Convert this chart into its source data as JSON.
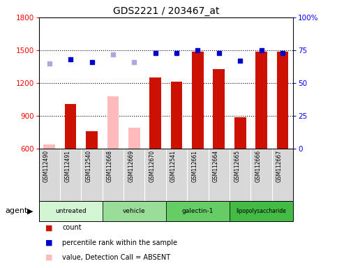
{
  "title": "GDS2221 / 203467_at",
  "samples": [
    "GSM112490",
    "GSM112491",
    "GSM112540",
    "GSM112668",
    "GSM112669",
    "GSM112670",
    "GSM112541",
    "GSM112661",
    "GSM112664",
    "GSM112665",
    "GSM112666",
    "GSM112667"
  ],
  "values": [
    640,
    1010,
    760,
    1080,
    790,
    1250,
    1210,
    1490,
    1330,
    890,
    1490,
    1490
  ],
  "ranks": [
    65,
    68,
    66,
    72,
    66,
    73,
    73,
    75,
    73,
    67,
    75,
    73
  ],
  "absent": [
    true,
    false,
    false,
    true,
    true,
    false,
    false,
    false,
    false,
    false,
    false,
    false
  ],
  "groups": [
    {
      "label": "untreated",
      "start": 0,
      "end": 3,
      "color": "#d4f5d4"
    },
    {
      "label": "vehicle",
      "start": 3,
      "end": 6,
      "color": "#99dd99"
    },
    {
      "label": "galectin-1",
      "start": 6,
      "end": 9,
      "color": "#66cc66"
    },
    {
      "label": "lipopolysaccharide",
      "start": 9,
      "end": 12,
      "color": "#44bb44"
    }
  ],
  "bar_color_present": "#cc1100",
  "bar_color_absent": "#ffbbbb",
  "rank_color_present": "#0000cc",
  "rank_color_absent": "#aaaadd",
  "ylim_left": [
    600,
    1800
  ],
  "ylim_right": [
    0,
    100
  ],
  "yticks_left": [
    600,
    900,
    1200,
    1500,
    1800
  ],
  "yticks_right": [
    0,
    25,
    50,
    75,
    100
  ],
  "bg_color": "#d8d8d8",
  "bar_width": 0.55
}
